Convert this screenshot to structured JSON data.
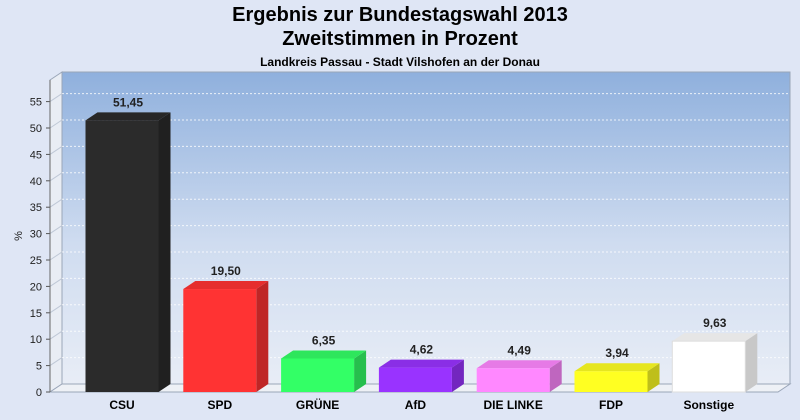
{
  "header": {
    "title_line1": "Ergebnis zur Bundestagswahl 2013",
    "title_line2": "Zweitstimmen in Prozent",
    "subtitle": "Landkreis Passau - Stadt Vilshofen an der Donau"
  },
  "chart_data": {
    "type": "bar",
    "title": "Ergebnis zur Bundestagswahl 2013 Zweitstimmen in Prozent",
    "subtitle": "Landkreis Passau - Stadt Vilshofen an der Donau",
    "xlabel": "",
    "ylabel": "%",
    "ylim": [
      0,
      58
    ],
    "yticks": [
      0,
      5,
      10,
      15,
      20,
      25,
      30,
      35,
      40,
      45,
      50,
      55
    ],
    "grid": true,
    "categories": [
      "CSU",
      "SPD",
      "GRÜNE",
      "AfD",
      "DIE LINKE",
      "FDP",
      "Sonstige"
    ],
    "values": [
      51.45,
      19.5,
      6.35,
      4.62,
      4.49,
      3.94,
      9.63
    ],
    "value_labels": [
      "51,45",
      "19,50",
      "6,35",
      "4,62",
      "4,49",
      "3,94",
      "9,63"
    ],
    "colors": [
      "#2b2b2b",
      "#ff3333",
      "#33ff66",
      "#9933ff",
      "#ff88ff",
      "#ffff22",
      "#ffffff"
    ]
  }
}
